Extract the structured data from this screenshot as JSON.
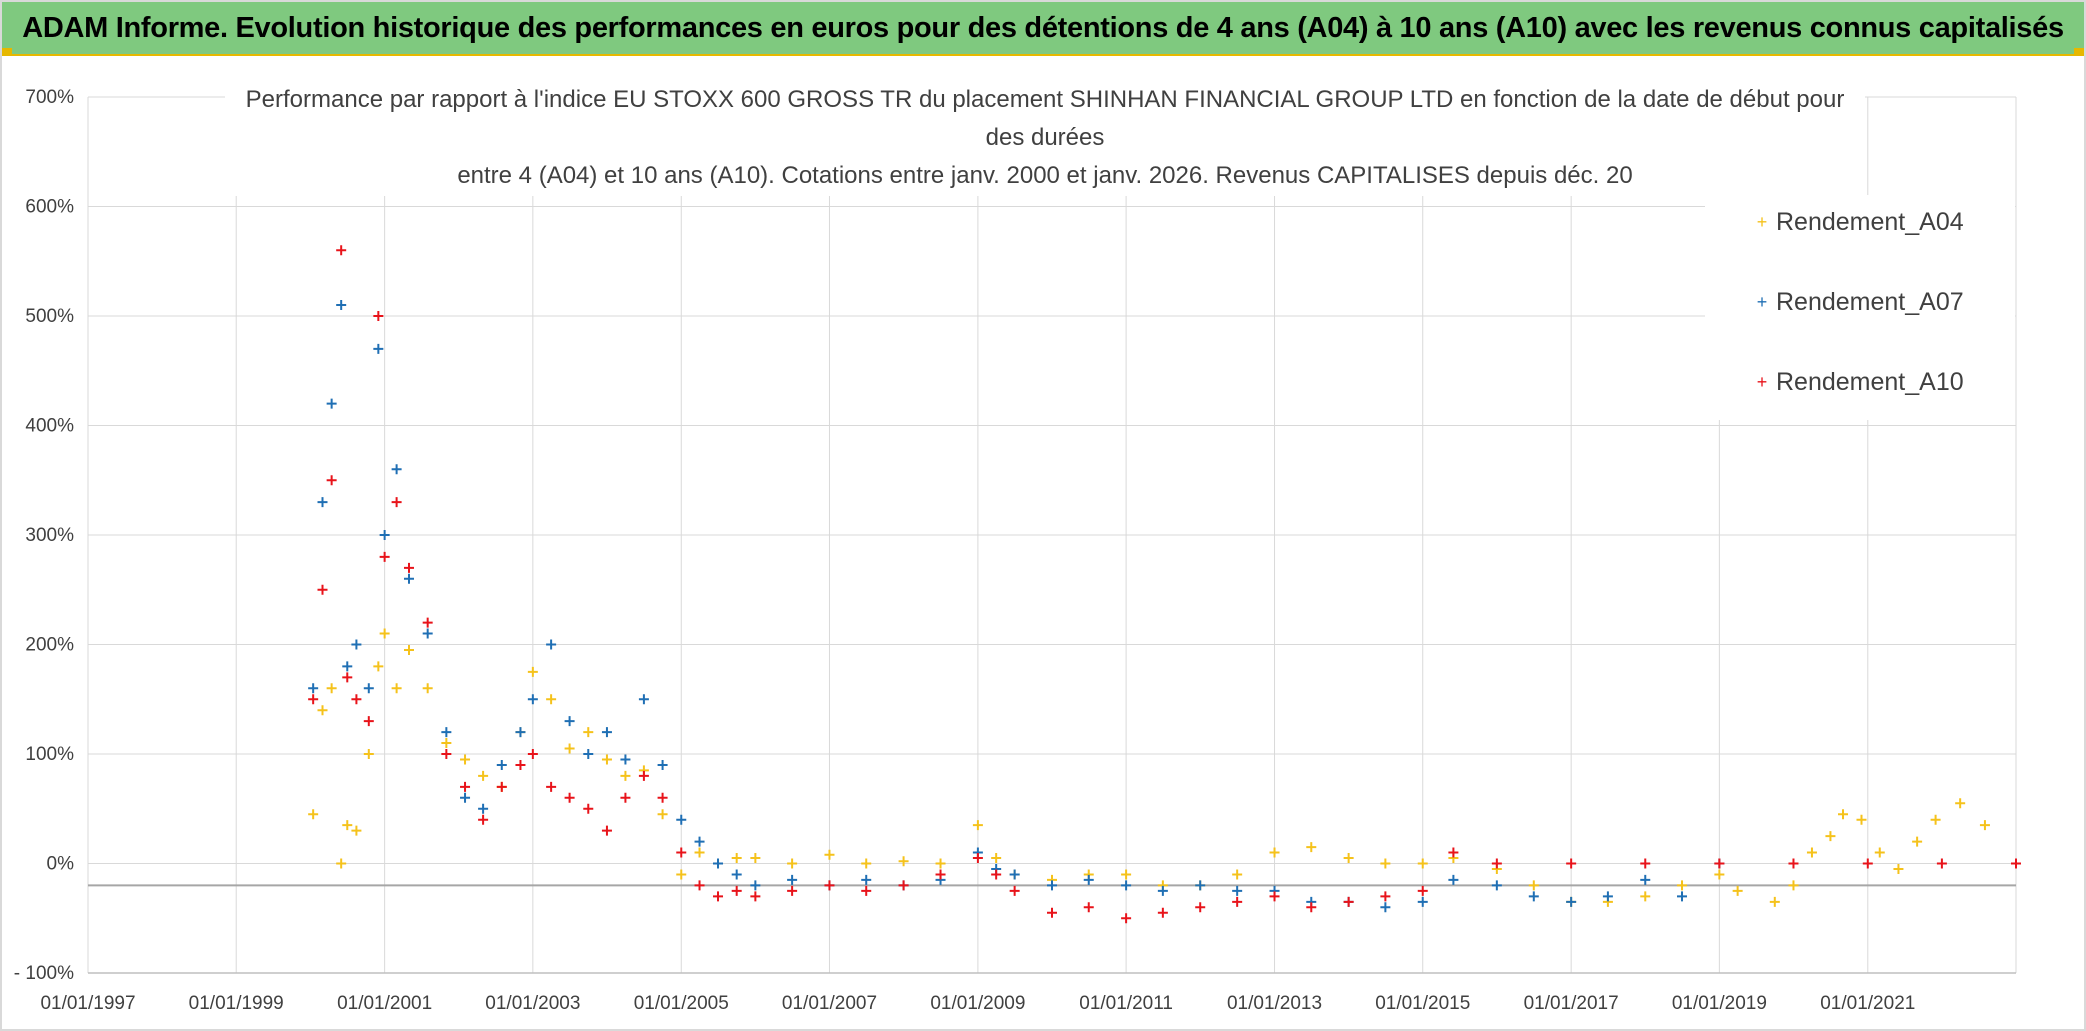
{
  "banner": {
    "title": "ADAM Informe. Evolution historique des performances en euros pour des détentions de 4 ans (A04) à 10 ans (A10) avec les revenus connus capitalisés",
    "bg_color": "#7fc97f",
    "accent_color": "#e6b800"
  },
  "chart_data": {
    "type": "scatter",
    "title_lines": [
      "Performance par rapport à l'indice EU STOXX 600 GROSS TR  du placement SHINHAN FINANCIAL GROUP LTD en fonction de la date de début pour",
      "des durées",
      "entre 4 (A04) et 10 ans (A10). Cotations entre janv. 2000 et janv. 2026. Revenus CAPITALISES depuis déc. 20"
    ],
    "xlabel": "",
    "ylabel": "",
    "x_axis_type": "date",
    "xlim": [
      "1997-01-01",
      "2023-01-01"
    ],
    "x_tick_labels": [
      "01/01/1997",
      "01/01/1999",
      "01/01/2001",
      "01/01/2003",
      "01/01/2005",
      "01/01/2007",
      "01/01/2009",
      "01/01/2011",
      "01/01/2013",
      "01/01/2015",
      "01/01/2017",
      "01/01/2019",
      "01/01/2021"
    ],
    "ylim": [
      -100,
      700
    ],
    "y_ticks": [
      -100,
      0,
      100,
      200,
      300,
      400,
      500,
      600,
      700
    ],
    "y_tick_labels": [
      "- 100%",
      "0%",
      "100%",
      "200%",
      "300%",
      "400%",
      "500%",
      "600%",
      "700%"
    ],
    "reference_line_y": -20,
    "grid": true,
    "marker": "+",
    "legend_position": "top-right",
    "series": [
      {
        "name": "Rendement_A04",
        "color": "#f5c21b",
        "points": [
          [
            "2000-01-15",
            45
          ],
          [
            "2000-03-01",
            140
          ],
          [
            "2000-04-15",
            160
          ],
          [
            "2000-06-01",
            0
          ],
          [
            "2000-07-01",
            35
          ],
          [
            "2000-08-15",
            30
          ],
          [
            "2000-10-15",
            100
          ],
          [
            "2000-12-01",
            180
          ],
          [
            "2001-01-01",
            210
          ],
          [
            "2001-03-01",
            160
          ],
          [
            "2001-05-01",
            195
          ],
          [
            "2001-08-01",
            160
          ],
          [
            "2001-11-01",
            110
          ],
          [
            "2002-02-01",
            95
          ],
          [
            "2002-05-01",
            80
          ],
          [
            "2002-08-01",
            70
          ],
          [
            "2002-11-01",
            120
          ],
          [
            "2003-01-01",
            175
          ],
          [
            "2003-04-01",
            150
          ],
          [
            "2003-07-01",
            105
          ],
          [
            "2003-10-01",
            120
          ],
          [
            "2004-01-01",
            95
          ],
          [
            "2004-04-01",
            80
          ],
          [
            "2004-07-01",
            85
          ],
          [
            "2004-10-01",
            45
          ],
          [
            "2005-01-01",
            -10
          ],
          [
            "2005-04-01",
            10
          ],
          [
            "2005-07-01",
            0
          ],
          [
            "2005-10-01",
            5
          ],
          [
            "2006-01-01",
            5
          ],
          [
            "2006-07-01",
            0
          ],
          [
            "2007-01-01",
            8
          ],
          [
            "2007-07-01",
            0
          ],
          [
            "2008-01-01",
            2
          ],
          [
            "2008-07-01",
            0
          ],
          [
            "2009-01-01",
            35
          ],
          [
            "2009-04-01",
            5
          ],
          [
            "2009-07-01",
            -10
          ],
          [
            "2010-01-01",
            -15
          ],
          [
            "2010-07-01",
            -10
          ],
          [
            "2011-01-01",
            -10
          ],
          [
            "2011-07-01",
            -20
          ],
          [
            "2012-01-01",
            -20
          ],
          [
            "2012-07-01",
            -10
          ],
          [
            "2013-01-01",
            10
          ],
          [
            "2013-07-01",
            15
          ],
          [
            "2014-01-01",
            5
          ],
          [
            "2014-07-01",
            0
          ],
          [
            "2015-01-01",
            0
          ],
          [
            "2015-06-01",
            5
          ],
          [
            "2016-01-01",
            -5
          ],
          [
            "2016-07-01",
            -20
          ],
          [
            "2017-01-01",
            -35
          ],
          [
            "2017-07-01",
            -35
          ],
          [
            "2018-01-01",
            -30
          ],
          [
            "2018-07-01",
            -20
          ],
          [
            "2019-01-01",
            -10
          ],
          [
            "2019-04-01",
            -25
          ],
          [
            "2019-10-01",
            -35
          ],
          [
            "2020-01-01",
            -20
          ],
          [
            "2020-04-01",
            10
          ],
          [
            "2020-07-01",
            25
          ],
          [
            "2020-09-01",
            45
          ],
          [
            "2020-12-01",
            40
          ],
          [
            "2021-03-01",
            10
          ],
          [
            "2021-06-01",
            -5
          ],
          [
            "2021-09-01",
            20
          ],
          [
            "2021-12-01",
            40
          ],
          [
            "2022-04-01",
            55
          ],
          [
            "2022-08-01",
            35
          ]
        ]
      },
      {
        "name": "Rendement_A07",
        "color": "#1f6fb4",
        "points": [
          [
            "2000-01-15",
            160
          ],
          [
            "2000-03-01",
            330
          ],
          [
            "2000-04-15",
            420
          ],
          [
            "2000-06-01",
            510
          ],
          [
            "2000-07-01",
            180
          ],
          [
            "2000-08-15",
            200
          ],
          [
            "2000-10-15",
            160
          ],
          [
            "2000-12-01",
            470
          ],
          [
            "2001-01-01",
            300
          ],
          [
            "2001-03-01",
            360
          ],
          [
            "2001-05-01",
            260
          ],
          [
            "2001-08-01",
            210
          ],
          [
            "2001-11-01",
            120
          ],
          [
            "2002-02-01",
            60
          ],
          [
            "2002-05-01",
            50
          ],
          [
            "2002-08-01",
            90
          ],
          [
            "2002-11-01",
            120
          ],
          [
            "2003-01-01",
            150
          ],
          [
            "2003-04-01",
            200
          ],
          [
            "2003-07-01",
            130
          ],
          [
            "2003-10-01",
            100
          ],
          [
            "2004-01-01",
            120
          ],
          [
            "2004-04-01",
            95
          ],
          [
            "2004-07-01",
            150
          ],
          [
            "2004-10-01",
            90
          ],
          [
            "2005-01-01",
            40
          ],
          [
            "2005-04-01",
            20
          ],
          [
            "2005-07-01",
            0
          ],
          [
            "2005-10-01",
            -10
          ],
          [
            "2006-01-01",
            -20
          ],
          [
            "2006-07-01",
            -15
          ],
          [
            "2007-01-01",
            -20
          ],
          [
            "2007-07-01",
            -15
          ],
          [
            "2008-01-01",
            -20
          ],
          [
            "2008-07-01",
            -15
          ],
          [
            "2009-01-01",
            10
          ],
          [
            "2009-04-01",
            -5
          ],
          [
            "2009-07-01",
            -10
          ],
          [
            "2010-01-01",
            -20
          ],
          [
            "2010-07-01",
            -15
          ],
          [
            "2011-01-01",
            -20
          ],
          [
            "2011-07-01",
            -25
          ],
          [
            "2012-01-01",
            -20
          ],
          [
            "2012-07-01",
            -25
          ],
          [
            "2013-01-01",
            -25
          ],
          [
            "2013-07-01",
            -35
          ],
          [
            "2014-01-01",
            -35
          ],
          [
            "2014-07-01",
            -40
          ],
          [
            "2015-01-01",
            -35
          ],
          [
            "2015-06-01",
            -15
          ],
          [
            "2016-01-01",
            -20
          ],
          [
            "2016-07-01",
            -30
          ],
          [
            "2017-01-01",
            -35
          ],
          [
            "2017-07-01",
            -30
          ],
          [
            "2018-01-01",
            -15
          ],
          [
            "2018-07-01",
            -30
          ],
          [
            "2019-01-01",
            0
          ]
        ]
      },
      {
        "name": "Rendement_A10",
        "color": "#e8131a",
        "points": [
          [
            "2000-01-15",
            150
          ],
          [
            "2000-03-01",
            250
          ],
          [
            "2000-04-15",
            350
          ],
          [
            "2000-06-01",
            560
          ],
          [
            "2000-07-01",
            170
          ],
          [
            "2000-08-15",
            150
          ],
          [
            "2000-10-15",
            130
          ],
          [
            "2000-12-01",
            500
          ],
          [
            "2001-01-01",
            280
          ],
          [
            "2001-03-01",
            330
          ],
          [
            "2001-05-01",
            270
          ],
          [
            "2001-08-01",
            220
          ],
          [
            "2001-11-01",
            100
          ],
          [
            "2002-02-01",
            70
          ],
          [
            "2002-05-01",
            40
          ],
          [
            "2002-08-01",
            70
          ],
          [
            "2002-11-01",
            90
          ],
          [
            "2003-01-01",
            100
          ],
          [
            "2003-04-01",
            70
          ],
          [
            "2003-07-01",
            60
          ],
          [
            "2003-10-01",
            50
          ],
          [
            "2004-01-01",
            30
          ],
          [
            "2004-04-01",
            60
          ],
          [
            "2004-07-01",
            80
          ],
          [
            "2004-10-01",
            60
          ],
          [
            "2005-01-01",
            10
          ],
          [
            "2005-04-01",
            -20
          ],
          [
            "2005-07-01",
            -30
          ],
          [
            "2005-10-01",
            -25
          ],
          [
            "2006-01-01",
            -30
          ],
          [
            "2006-07-01",
            -25
          ],
          [
            "2007-01-01",
            -20
          ],
          [
            "2007-07-01",
            -25
          ],
          [
            "2008-01-01",
            -20
          ],
          [
            "2008-07-01",
            -10
          ],
          [
            "2009-01-01",
            5
          ],
          [
            "2009-04-01",
            -10
          ],
          [
            "2009-07-01",
            -25
          ],
          [
            "2010-01-01",
            -45
          ],
          [
            "2010-07-01",
            -40
          ],
          [
            "2011-01-01",
            -50
          ],
          [
            "2011-07-01",
            -45
          ],
          [
            "2012-01-01",
            -40
          ],
          [
            "2012-07-01",
            -35
          ],
          [
            "2013-01-01",
            -30
          ],
          [
            "2013-07-01",
            -40
          ],
          [
            "2014-01-01",
            -35
          ],
          [
            "2014-07-01",
            -30
          ],
          [
            "2015-01-01",
            -25
          ],
          [
            "2015-06-01",
            10
          ],
          [
            "2016-01-01",
            0
          ],
          [
            "2017-01-01",
            0
          ],
          [
            "2018-01-01",
            0
          ],
          [
            "2019-01-01",
            0
          ],
          [
            "2020-01-01",
            0
          ],
          [
            "2021-01-01",
            0
          ],
          [
            "2022-01-01",
            0
          ],
          [
            "2023-01-01",
            0
          ]
        ]
      }
    ]
  }
}
